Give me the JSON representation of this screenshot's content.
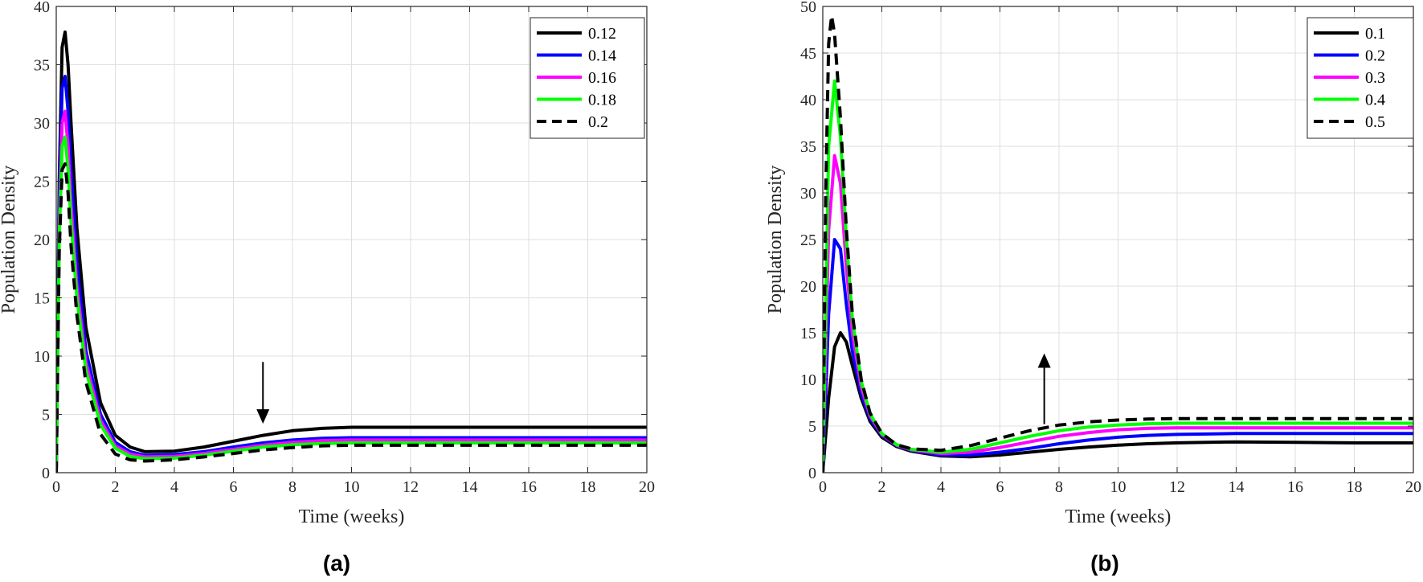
{
  "chart_data": [
    {
      "panel": "(a)",
      "type": "line",
      "xlabel": "Time (weeks)",
      "ylabel": "Population Density",
      "xlim": [
        0,
        20
      ],
      "ylim": [
        0,
        40
      ],
      "xticks": [
        0,
        2,
        4,
        6,
        8,
        10,
        12,
        14,
        16,
        18,
        20
      ],
      "yticks": [
        0,
        5,
        10,
        15,
        20,
        25,
        30,
        35,
        40
      ],
      "grid": true,
      "legend_position": "top-right",
      "annotation": "down arrow at t = 7",
      "series": [
        {
          "name": "0.12",
          "color": "#000000",
          "style": "solid",
          "x": [
            0,
            0.1,
            0.2,
            0.3,
            0.4,
            0.5,
            0.7,
            1,
            1.5,
            2,
            2.5,
            3,
            4,
            5,
            6,
            7,
            8,
            9,
            10,
            12,
            14,
            16,
            18,
            20
          ],
          "y": [
            0,
            25,
            36.5,
            37.8,
            35,
            30,
            21,
            12.5,
            6,
            3.2,
            2.2,
            1.8,
            1.85,
            2.2,
            2.7,
            3.2,
            3.6,
            3.8,
            3.9,
            3.9,
            3.9,
            3.9,
            3.9,
            3.9
          ]
        },
        {
          "name": "0.14",
          "color": "#0000ff",
          "style": "solid",
          "x": [
            0,
            0.1,
            0.2,
            0.3,
            0.4,
            0.5,
            0.7,
            1,
            1.5,
            2,
            2.5,
            3,
            4,
            5,
            6,
            7,
            8,
            9,
            10,
            12,
            14,
            16,
            18,
            20
          ],
          "y": [
            0,
            23,
            33,
            34,
            31,
            26,
            18,
            10.5,
            5,
            2.6,
            1.8,
            1.5,
            1.55,
            1.8,
            2.2,
            2.55,
            2.8,
            2.95,
            3.0,
            3.0,
            3.0,
            3.0,
            3.0,
            3.0
          ]
        },
        {
          "name": "0.16",
          "color": "#ff00ff",
          "style": "solid",
          "x": [
            0,
            0.1,
            0.2,
            0.3,
            0.4,
            0.5,
            0.7,
            1,
            1.5,
            2,
            2.5,
            3,
            4,
            5,
            6,
            7,
            8,
            9,
            10,
            12,
            14,
            16,
            18,
            20
          ],
          "y": [
            0,
            21,
            30,
            31,
            28,
            23,
            16,
            9.5,
            4.5,
            2.3,
            1.6,
            1.35,
            1.4,
            1.65,
            2.0,
            2.35,
            2.6,
            2.75,
            2.8,
            2.8,
            2.8,
            2.8,
            2.8,
            2.8
          ]
        },
        {
          "name": "0.18",
          "color": "#00ff00",
          "style": "solid",
          "x": [
            0,
            0.1,
            0.2,
            0.3,
            0.4,
            0.5,
            0.7,
            1,
            1.5,
            2,
            2.5,
            3,
            4,
            5,
            6,
            7,
            8,
            9,
            10,
            12,
            14,
            16,
            18,
            20
          ],
          "y": [
            0,
            20,
            28,
            28.8,
            26,
            21.5,
            15,
            8.8,
            4.1,
            2.1,
            1.4,
            1.2,
            1.25,
            1.5,
            1.85,
            2.2,
            2.4,
            2.5,
            2.55,
            2.55,
            2.55,
            2.55,
            2.55,
            2.55
          ]
        },
        {
          "name": "0.2",
          "color": "#000000",
          "style": "dashed",
          "x": [
            0,
            0.1,
            0.2,
            0.3,
            0.4,
            0.5,
            0.7,
            1,
            1.5,
            2,
            2.5,
            3,
            4,
            5,
            6,
            7,
            8,
            9,
            10,
            12,
            14,
            16,
            18,
            20
          ],
          "y": [
            0,
            19,
            26,
            26.5,
            24,
            19.5,
            13.5,
            7.8,
            3.3,
            1.6,
            1.1,
            1.0,
            1.1,
            1.35,
            1.65,
            1.95,
            2.15,
            2.3,
            2.35,
            2.35,
            2.35,
            2.35,
            2.35,
            2.35
          ]
        }
      ]
    },
    {
      "panel": "(b)",
      "type": "line",
      "xlabel": "Time (weeks)",
      "ylabel": "Population Density",
      "xlim": [
        0,
        20
      ],
      "ylim": [
        0,
        50
      ],
      "xticks": [
        0,
        2,
        4,
        6,
        8,
        10,
        12,
        14,
        16,
        18,
        20
      ],
      "yticks": [
        0,
        5,
        10,
        15,
        20,
        25,
        30,
        35,
        40,
        45,
        50
      ],
      "grid": true,
      "legend_position": "top-right",
      "annotation": "up arrow at t = 7.5",
      "series": [
        {
          "name": "0.1",
          "color": "#000000",
          "style": "solid",
          "x": [
            0,
            0.2,
            0.4,
            0.6,
            0.8,
            1,
            1.3,
            1.6,
            2,
            2.5,
            3,
            4,
            5,
            6,
            7,
            8,
            9,
            10,
            11,
            12,
            13,
            14,
            16,
            18,
            20
          ],
          "y": [
            0,
            8,
            13.5,
            15,
            14,
            11.5,
            8,
            5.5,
            3.8,
            2.8,
            2.3,
            1.8,
            1.7,
            1.9,
            2.2,
            2.5,
            2.75,
            2.95,
            3.1,
            3.2,
            3.25,
            3.3,
            3.25,
            3.2,
            3.2
          ]
        },
        {
          "name": "0.2",
          "color": "#0000ff",
          "style": "solid",
          "x": [
            0,
            0.2,
            0.4,
            0.6,
            0.8,
            1,
            1.3,
            1.6,
            2,
            2.5,
            3,
            4,
            5,
            6,
            7,
            8,
            9,
            10,
            11,
            12,
            13,
            14,
            16,
            18,
            20
          ],
          "y": [
            0,
            17,
            25,
            24,
            18,
            13,
            8.5,
            5.8,
            4.0,
            2.9,
            2.4,
            1.9,
            1.9,
            2.2,
            2.6,
            3.1,
            3.5,
            3.8,
            4.0,
            4.1,
            4.15,
            4.2,
            4.2,
            4.2,
            4.2
          ]
        },
        {
          "name": "0.3",
          "color": "#ff00ff",
          "style": "solid",
          "x": [
            0,
            0.2,
            0.4,
            0.6,
            0.8,
            1,
            1.3,
            1.6,
            2,
            2.5,
            3,
            4,
            5,
            6,
            7,
            8,
            9,
            10,
            11,
            12,
            13,
            14,
            16,
            18,
            20
          ],
          "y": [
            0,
            26,
            34,
            31,
            22,
            15,
            9.2,
            6.1,
            4.1,
            2.95,
            2.45,
            2.05,
            2.2,
            2.7,
            3.3,
            3.9,
            4.3,
            4.6,
            4.75,
            4.8,
            4.8,
            4.8,
            4.8,
            4.8,
            4.8
          ]
        },
        {
          "name": "0.4",
          "color": "#00ff00",
          "style": "solid",
          "x": [
            0,
            0.2,
            0.4,
            0.6,
            0.8,
            1,
            1.3,
            1.6,
            2,
            2.5,
            3,
            4,
            5,
            6,
            7,
            8,
            9,
            10,
            11,
            12,
            13,
            14,
            16,
            18,
            20
          ],
          "y": [
            0,
            35,
            42,
            36,
            25,
            16.5,
            9.8,
            6.3,
            4.2,
            3.0,
            2.5,
            2.2,
            2.5,
            3.2,
            3.9,
            4.5,
            4.9,
            5.1,
            5.25,
            5.3,
            5.3,
            5.3,
            5.3,
            5.3,
            5.3
          ]
        },
        {
          "name": "0.5",
          "color": "#000000",
          "style": "dashed",
          "x": [
            0,
            0.1,
            0.2,
            0.3,
            0.4,
            0.6,
            0.8,
            1,
            1.3,
            1.6,
            2,
            2.5,
            3,
            4,
            5,
            6,
            7,
            8,
            9,
            10,
            11,
            12,
            13,
            14,
            16,
            18,
            20
          ],
          "y": [
            0,
            30,
            46,
            49,
            47,
            38,
            26,
            17,
            10,
            6.4,
            4.2,
            3.0,
            2.55,
            2.4,
            2.9,
            3.7,
            4.5,
            5.1,
            5.45,
            5.65,
            5.75,
            5.8,
            5.8,
            5.8,
            5.8,
            5.8,
            5.8
          ]
        }
      ]
    }
  ]
}
